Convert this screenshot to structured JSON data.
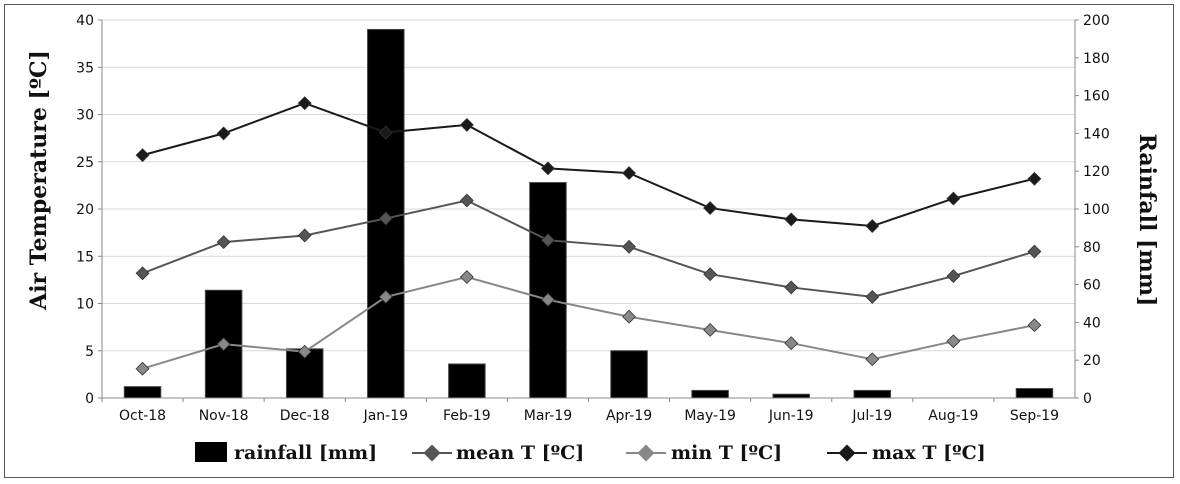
{
  "chart_data": {
    "type": "bar+line",
    "categories": [
      "Oct-18",
      "Nov-18",
      "Dec-18",
      "Jan-19",
      "Feb-19",
      "Mar-19",
      "Apr-19",
      "May-19",
      "Jun-19",
      "Jul-19",
      "Aug-19",
      "Sep-19"
    ],
    "bars": {
      "name": "rainfall [mm]",
      "axis": "right",
      "values": [
        6,
        57,
        26,
        195,
        18,
        114,
        25,
        4,
        2,
        4,
        0,
        5
      ],
      "color": "#000000"
    },
    "series": [
      {
        "name": "mean T [ºC]",
        "axis": "left",
        "color": "#555555",
        "values": [
          13.2,
          16.5,
          17.2,
          19.0,
          20.9,
          16.7,
          16.0,
          13.1,
          11.7,
          10.7,
          12.9,
          15.5
        ]
      },
      {
        "name": "min T [ºC]",
        "axis": "left",
        "color": "#888888",
        "values": [
          3.1,
          5.7,
          4.9,
          10.7,
          12.8,
          10.4,
          8.6,
          7.2,
          5.8,
          4.1,
          6.0,
          7.7
        ]
      },
      {
        "name": "max T [ºC]",
        "axis": "left",
        "color": "#1a1a1a",
        "values": [
          25.7,
          28.0,
          31.2,
          28.1,
          28.9,
          24.3,
          23.8,
          20.1,
          18.9,
          18.2,
          21.1,
          23.2
        ]
      }
    ],
    "ylabel_left": "Air Temperature [ºC]",
    "ylabel_right": "Rainfall [mm]",
    "ylim_left": [
      0,
      40
    ],
    "yticks_left": [
      0,
      5,
      10,
      15,
      20,
      25,
      30,
      35,
      40
    ],
    "ylim_right": [
      0,
      200
    ],
    "yticks_right": [
      0,
      20,
      40,
      60,
      80,
      100,
      120,
      140,
      160,
      180,
      200
    ],
    "grid": true,
    "legend_position": "bottom"
  }
}
